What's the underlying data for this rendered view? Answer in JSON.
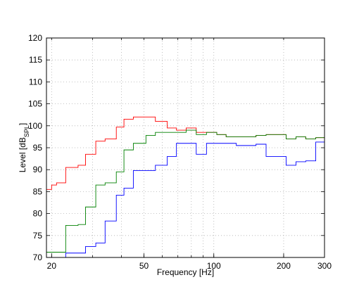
{
  "chart_data": {
    "type": "line",
    "title": "",
    "xlabel": "Frequency [Hz]",
    "ylabel": "Level [dB",
    "ylabel_sub": "SPL",
    "ylabel_end": "]",
    "x_scale": "log",
    "xlim": [
      19,
      300
    ],
    "ylim": [
      70,
      120
    ],
    "xticks": [
      20,
      50,
      100,
      200,
      300
    ],
    "xtick_labels": [
      "20",
      "50",
      "100",
      "200",
      "300"
    ],
    "xgrid": [
      20,
      30,
      40,
      50,
      60,
      70,
      80,
      90,
      100,
      200,
      300
    ],
    "yticks": [
      70,
      75,
      80,
      85,
      90,
      95,
      100,
      105,
      110,
      115,
      120
    ],
    "ytick_labels": [
      "70",
      "75",
      "80",
      "85",
      "90",
      "95",
      "100",
      "105",
      "110",
      "115",
      "120"
    ],
    "grid": true,
    "step": true,
    "series": [
      {
        "color": "#ff0000",
        "x": [
          19,
          20,
          21,
          23,
          26,
          28,
          31,
          34,
          38,
          41,
          45,
          51,
          56,
          63,
          69,
          76,
          84,
          93,
          103,
          113,
          125,
          137,
          152,
          168,
          185,
          205,
          226,
          249,
          275,
          300
        ],
        "y": [
          85.5,
          86.5,
          87,
          90.5,
          91,
          93.5,
          96.5,
          97,
          99.7,
          101.5,
          102,
          102,
          101,
          99.5,
          99,
          99.5,
          98.5,
          98.5,
          98,
          97.5,
          97.5,
          97.5,
          97.8,
          98,
          98,
          97,
          97.5,
          97,
          97.3,
          97.3
        ]
      },
      {
        "color": "#008000",
        "x": [
          19,
          20,
          21,
          23,
          26,
          28,
          31,
          34,
          38,
          41,
          45,
          51,
          56,
          63,
          69,
          76,
          84,
          93,
          103,
          113,
          125,
          137,
          152,
          168,
          185,
          205,
          226,
          249,
          275,
          300
        ],
        "y": [
          71.2,
          71.2,
          71.2,
          77.3,
          77.5,
          81.5,
          86.5,
          87,
          89.5,
          94.5,
          96,
          97.8,
          98.5,
          98.5,
          98.5,
          99,
          98,
          98.5,
          98,
          97.5,
          97.5,
          97.5,
          97.8,
          98,
          98,
          97,
          97.5,
          97,
          97.3,
          97.3
        ]
      },
      {
        "color": "#0000ff",
        "x": [
          19,
          20,
          21,
          23,
          26,
          28,
          31,
          34,
          38,
          41,
          45,
          51,
          56,
          63,
          69,
          76,
          84,
          93,
          103,
          113,
          125,
          137,
          152,
          168,
          185,
          205,
          226,
          249,
          275,
          300
        ],
        "y": [
          70,
          70,
          70,
          71,
          71,
          72.5,
          73.3,
          78.3,
          84.2,
          85.8,
          89.8,
          89.8,
          91,
          93,
          96,
          96,
          93.5,
          96,
          96,
          96,
          95.5,
          95.5,
          95.8,
          93,
          93,
          91,
          91.8,
          92,
          96.3,
          96.3
        ]
      }
    ]
  }
}
